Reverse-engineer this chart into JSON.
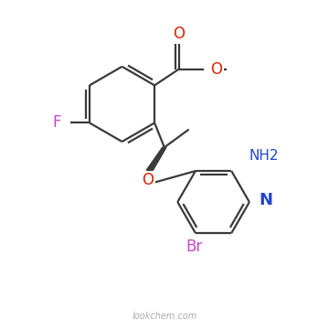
{
  "background_color": "#ffffff",
  "bond_color": "#3a3a3a",
  "atom_colors": {
    "F": "#cc44cc",
    "O": "#dd2200",
    "N": "#2244cc",
    "Br": "#cc44cc",
    "C": "#3a3a3a"
  },
  "watermark": "lookchem.com"
}
